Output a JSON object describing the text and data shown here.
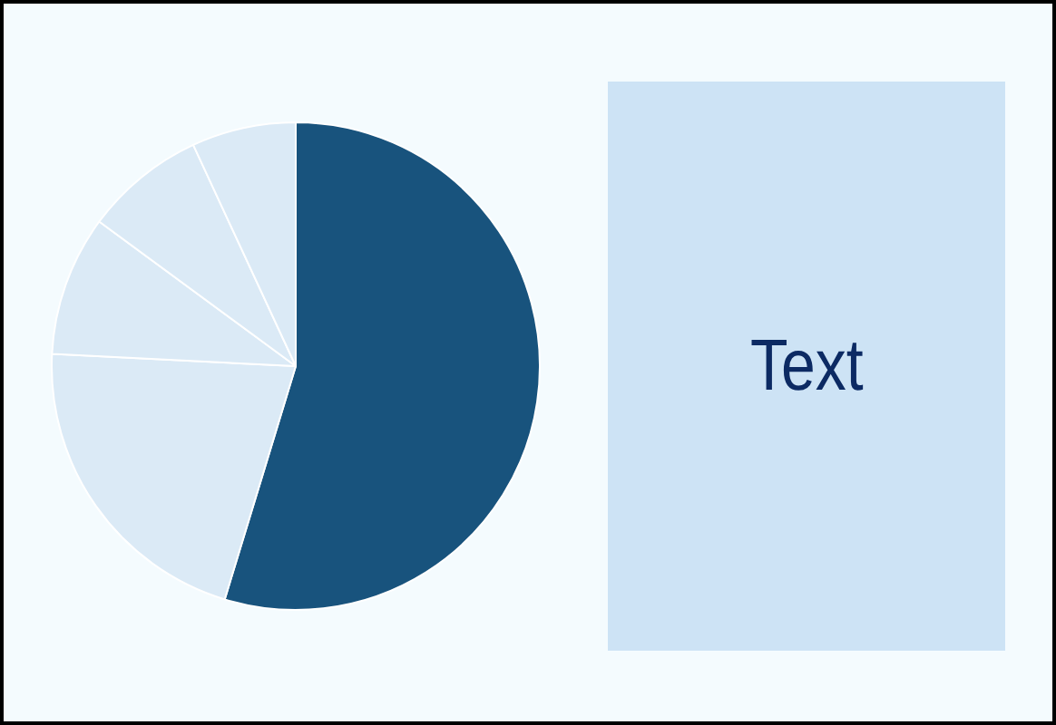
{
  "chart_data": {
    "type": "pie",
    "categories": [
      null,
      null,
      null,
      null,
      null
    ],
    "values": [
      54.7,
      21.1,
      9.3,
      8.0,
      6.9
    ],
    "colors": [
      "#18537d",
      "#dbeaf6",
      "#dbeaf6",
      "#dbeaf6",
      "#dbeaf6"
    ],
    "legend": false,
    "annotations": [
      "Text"
    ]
  }
}
